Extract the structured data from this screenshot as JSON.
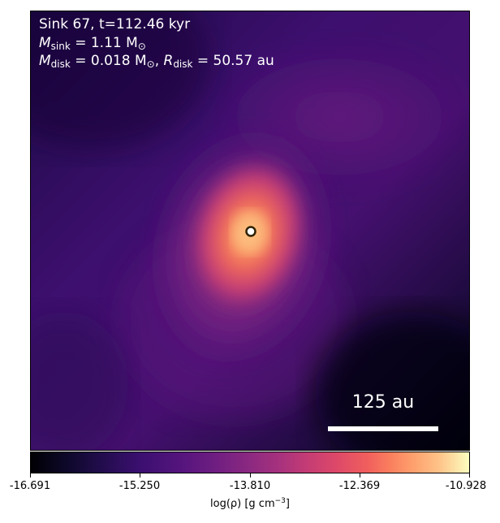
{
  "annotation": {
    "sink_line": "Sink 67, t=112.46 kyr",
    "mass_sym": "M",
    "mass_sub": "sink",
    "mass_val": " = 1.11 M",
    "disk_sym": "M",
    "disk_sub": "disk",
    "disk_val": " = 0.018 M",
    "rad_sym": "R",
    "rad_sub": "disk",
    "rad_val": " = 50.57 au",
    "sun_sub": "⊙"
  },
  "scale_bar": {
    "label": "125 au"
  },
  "colorbar": {
    "ticks": [
      "-16.691",
      "-15.250",
      "-13.810",
      "-12.369",
      "-10.928"
    ],
    "label_pre": "log(ρ) [g cm",
    "label_sup": "−3",
    "label_post": "]",
    "colormap": "inferno"
  },
  "colors": {
    "background_dark": "#1a0838",
    "disk_peak": "#fdae61",
    "sink_marker_ring": "#2f2200",
    "sink_marker_fill": "#ffffff"
  }
}
